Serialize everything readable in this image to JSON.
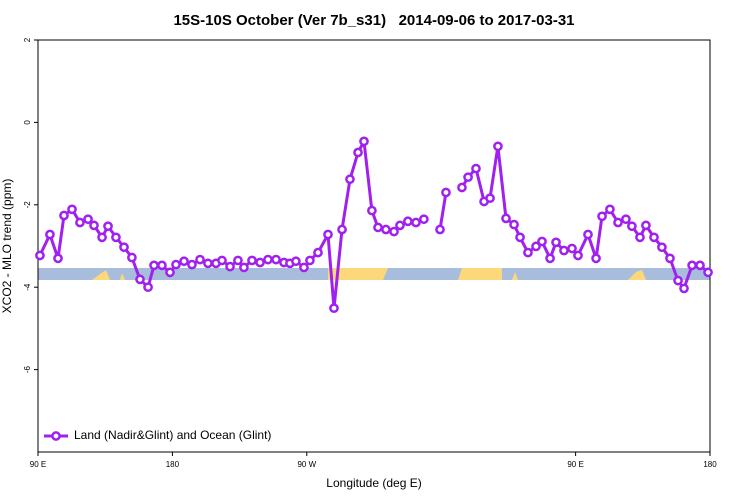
{
  "chart_data": {
    "type": "line",
    "title": "15S-10S October (Ver 7b_s31)   2014-09-06 to 2017-03-31",
    "xlabel": "Longitude (deg E)",
    "ylabel": "XCO2 - MLO trend (ppm)",
    "xlim": [
      90,
      540
    ],
    "ylim": [
      -8,
      2
    ],
    "xticks": [
      {
        "value": 90,
        "label": "90 E"
      },
      {
        "value": 180,
        "label": "180"
      },
      {
        "value": 270,
        "label": "90 W"
      },
      {
        "value": 450,
        "label": "90 E"
      },
      {
        "value": 540,
        "label": "180"
      }
    ],
    "yticks": [
      2,
      0,
      -2,
      -4,
      -6
    ],
    "legend": "bottom-left",
    "x": [
      91.3,
      98,
      103.4,
      107.4,
      112.8,
      118.1,
      123.5,
      127.5,
      132.9,
      136.9,
      142.2,
      147.6,
      152.9,
      158.3,
      163.7,
      167.7,
      173,
      178.4,
      182.4,
      187.8,
      193.1,
      198.5,
      203.8,
      209.2,
      213.2,
      218.6,
      223.9,
      227.9,
      233.3,
      238.7,
      244,
      249.4,
      254.7,
      258.7,
      262.7,
      268.1,
      272.1,
      277.5,
      284.2,
      288.2,
      293.6,
      298.9,
      304.3,
      308.3,
      313.6,
      317.7,
      323,
      328.4,
      332.4,
      337.7,
      343.1,
      348.4,
      353.8,
      359.2,
      363.2,
      368.5,
      373.9,
      378,
      383.3,
      388.7,
      392.7,
      398,
      403.4,
      408.8,
      412.8,
      418.1,
      423.5,
      427.5,
      432.9,
      436.9,
      442.2,
      447.6,
      451.6,
      458.3,
      463.7,
      467.7,
      473,
      478.4,
      483.7,
      487.7,
      493.1,
      497.1,
      502.5,
      507.8,
      513.2,
      518.6,
      522.6,
      528,
      533.3,
      538.7
    ],
    "series": [
      {
        "name": "Land (Nadir&Glint) and Ocean (Glint)",
        "color": "#a020f0",
        "values": [
          -3.23,
          -2.72,
          -3.3,
          -2.26,
          -2.11,
          -2.43,
          -2.35,
          -2.5,
          -2.79,
          -2.52,
          -2.79,
          -3.03,
          -3.28,
          -3.81,
          -4.0,
          -3.47,
          -3.47,
          -3.64,
          -3.45,
          -3.37,
          -3.45,
          -3.33,
          -3.42,
          -3.42,
          -3.35,
          -3.5,
          -3.35,
          -3.52,
          -3.35,
          -3.4,
          -3.33,
          -3.33,
          -3.4,
          -3.42,
          -3.37,
          -3.52,
          -3.35,
          -3.16,
          -2.72,
          -4.51,
          -2.6,
          -1.38,
          -0.73,
          -0.46,
          -2.14,
          -2.55,
          -2.6,
          -2.65,
          -2.5,
          -2.4,
          -2.43,
          -2.35,
          null,
          -2.6,
          -1.7,
          null,
          -1.58,
          -1.33,
          -1.12,
          -1.92,
          -1.84,
          -0.58,
          -2.33,
          -2.48,
          -2.79,
          -3.16,
          -3.01,
          -2.89,
          -3.3,
          -2.91,
          -3.11,
          -3.06,
          -3.23,
          -2.72,
          -3.3,
          -2.28,
          -2.11,
          -2.43,
          -2.35,
          -2.52,
          -2.79,
          -2.5,
          -2.79,
          -3.03,
          -3.3,
          -3.84,
          -4.03,
          -3.47,
          -3.47,
          -3.64
        ]
      }
    ]
  }
}
